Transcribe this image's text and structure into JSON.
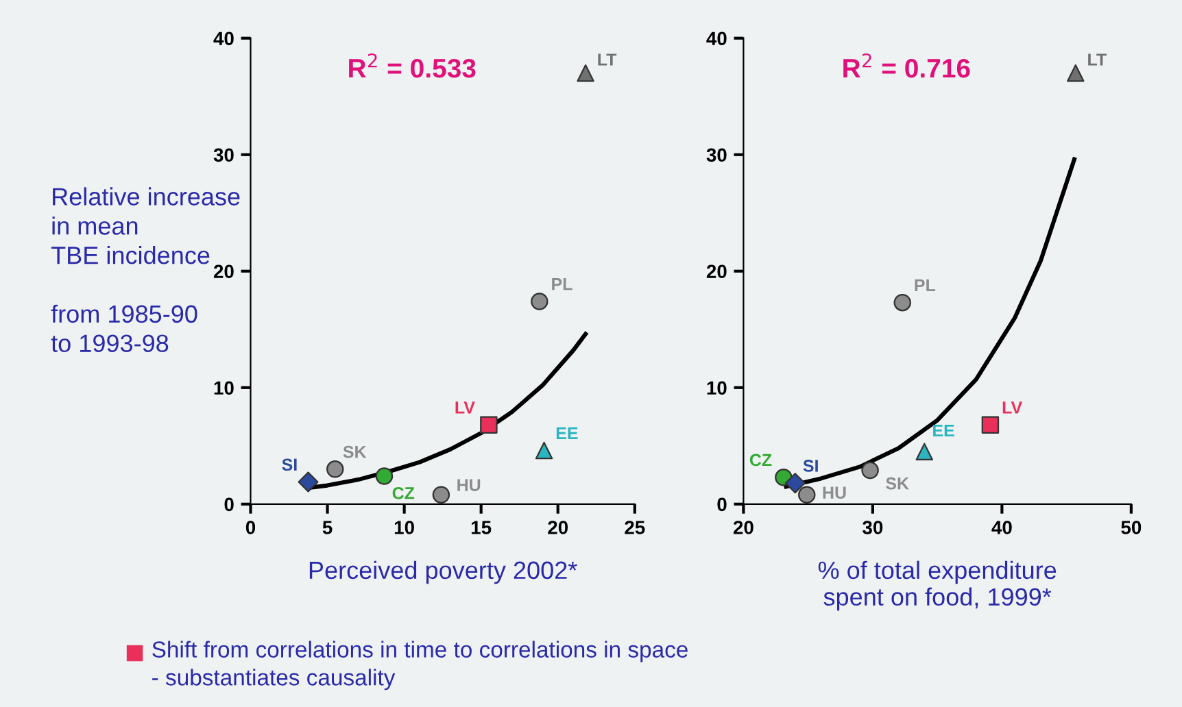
{
  "chart_data": [
    {
      "type": "scatter",
      "xlabel": "Perceived poverty 2002*",
      "ylabel": "Relative increase\nin mean\nTBE incidence\n\nfrom 1985-90\nto 1993-98",
      "xlim": [
        0,
        25
      ],
      "xticks": [
        0,
        5,
        10,
        15,
        20,
        25
      ],
      "ylim": [
        0,
        40
      ],
      "yticks": [
        0,
        10,
        20,
        30,
        40
      ],
      "grid": false,
      "legend": false,
      "annotations": [
        "R$^{2}$ = 0.533",
        "Shift from correlations in time to correlations in space\n- substantiates causality"
      ],
      "series": [
        {
          "name": "SI",
          "color": "#2b4a9e",
          "marker": "diamond",
          "x": [
            3.75
          ],
          "values": [
            1.9
          ]
        },
        {
          "name": "SK",
          "color": "#8c8c8c",
          "marker": "circle",
          "x": [
            5.5
          ],
          "values": [
            3.0
          ]
        },
        {
          "name": "CZ",
          "color": "#33aa33",
          "marker": "circle",
          "x": [
            8.7
          ],
          "values": [
            2.4
          ]
        },
        {
          "name": "HU",
          "color": "#8c8c8c",
          "marker": "circle",
          "x": [
            12.4
          ],
          "values": [
            0.8
          ]
        },
        {
          "name": "LV",
          "color": "#e8305a",
          "marker": "square",
          "x": [
            15.5
          ],
          "values": [
            6.8
          ]
        },
        {
          "name": "EE",
          "color": "#2bb5c0",
          "marker": "triangle",
          "x": [
            19.1
          ],
          "values": [
            4.6
          ]
        },
        {
          "name": "PL",
          "color": "#8c8c8c",
          "marker": "circle",
          "x": [
            18.8
          ],
          "values": [
            17.4
          ]
        },
        {
          "name": "LT",
          "color": "#707070",
          "marker": "triangle",
          "x": [
            21.8
          ],
          "values": [
            37.0
          ]
        },
        {
          "type": "line",
          "color": "#000000",
          "marker": "none",
          "x": [
            3.75,
            5,
            7,
            9,
            11,
            13,
            15,
            17,
            19,
            21,
            21.8
          ],
          "values": [
            1.4,
            1.6,
            2.1,
            2.8,
            3.6,
            4.7,
            6.1,
            7.9,
            10.2,
            13.2,
            14.6
          ]
        }
      ]
    },
    {
      "type": "scatter",
      "xlabel": "% of total expenditure\nspent on food, 1999*",
      "xlim": [
        20,
        50
      ],
      "xticks": [
        20,
        30,
        40,
        50
      ],
      "ylim": [
        0,
        40
      ],
      "yticks": [
        0,
        10,
        20,
        30,
        40
      ],
      "grid": false,
      "legend": false,
      "annotations": [
        "R$^{2}$ = 0.716"
      ],
      "series": [
        {
          "name": "CZ",
          "color": "#33aa33",
          "marker": "circle",
          "x": [
            23.1
          ],
          "values": [
            2.3
          ]
        },
        {
          "name": "SI",
          "color": "#2b4a9e",
          "marker": "diamond",
          "x": [
            24.0
          ],
          "values": [
            1.8
          ]
        },
        {
          "name": "HU",
          "color": "#8c8c8c",
          "marker": "circle",
          "x": [
            24.9
          ],
          "values": [
            0.8
          ]
        },
        {
          "name": "SK",
          "color": "#8c8c8c",
          "marker": "circle",
          "x": [
            29.8
          ],
          "values": [
            2.9
          ]
        },
        {
          "name": "PL",
          "color": "#8c8c8c",
          "marker": "circle",
          "x": [
            32.3
          ],
          "values": [
            17.3
          ]
        },
        {
          "name": "EE",
          "color": "#2bb5c0",
          "marker": "triangle",
          "x": [
            34.0
          ],
          "values": [
            4.5
          ]
        },
        {
          "name": "LV",
          "color": "#e8305a",
          "marker": "square",
          "x": [
            39.1
          ],
          "values": [
            6.8
          ]
        },
        {
          "name": "LT",
          "color": "#707070",
          "marker": "triangle",
          "x": [
            45.7
          ],
          "values": [
            37.0
          ]
        },
        {
          "type": "line",
          "color": "#000000",
          "marker": "none",
          "x": [
            23.3,
            26,
            29,
            32,
            35,
            38,
            41,
            43,
            45.6
          ],
          "values": [
            1.5,
            2.2,
            3.2,
            4.8,
            7.2,
            10.7,
            16.0,
            20.9,
            29.6
          ]
        }
      ]
    }
  ]
}
